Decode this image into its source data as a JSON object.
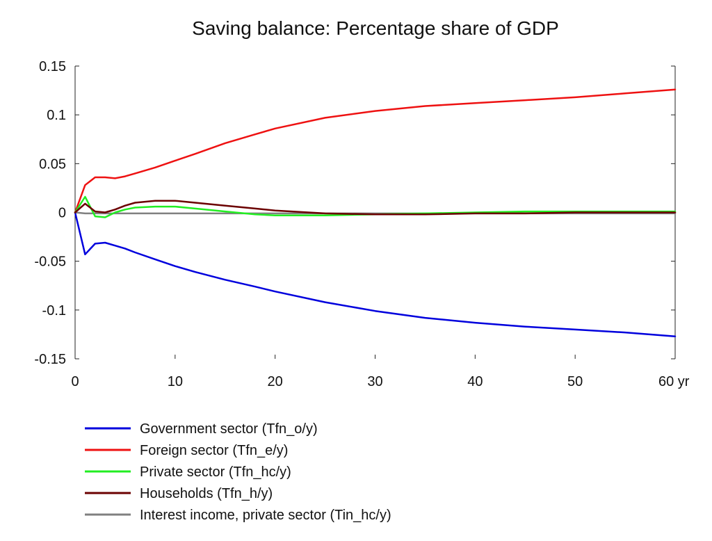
{
  "chart_data": {
    "type": "line",
    "title": "Saving balance: Percentage share of GDP",
    "xlabel": "",
    "ylabel": "",
    "x_unit_suffix": "yr",
    "xlim": [
      0,
      60
    ],
    "ylim": [
      -0.15,
      0.15
    ],
    "x_ticks": [
      0,
      10,
      20,
      30,
      40,
      50,
      60
    ],
    "x_tick_labels": [
      "0",
      "10",
      "20",
      "30",
      "40",
      "50",
      "60 yr"
    ],
    "y_ticks": [
      0.15,
      0.1,
      0.05,
      0,
      -0.05,
      -0.1,
      -0.15
    ],
    "y_tick_labels": [
      "0.15",
      "0.1",
      "0.05",
      "0",
      "-0.05",
      "-0.1",
      "-0.15"
    ],
    "grid": false,
    "legend_position": "bottom-left",
    "series": [
      {
        "name": "Government sector (Tfn_o/y)",
        "color": "#0000dd",
        "x": [
          0,
          1,
          2,
          3,
          4,
          5,
          6,
          8,
          10,
          12,
          15,
          18,
          20,
          25,
          30,
          35,
          40,
          45,
          50,
          55,
          60
        ],
        "y": [
          0,
          -0.043,
          -0.032,
          -0.031,
          -0.034,
          -0.037,
          -0.041,
          -0.048,
          -0.055,
          -0.061,
          -0.069,
          -0.076,
          -0.081,
          -0.092,
          -0.101,
          -0.108,
          -0.113,
          -0.117,
          -0.12,
          -0.123,
          -0.127
        ]
      },
      {
        "name": "Foreign sector (Tfn_e/y)",
        "color": "#ee1111",
        "x": [
          0,
          1,
          2,
          3,
          4,
          5,
          6,
          8,
          10,
          12,
          15,
          18,
          20,
          25,
          30,
          35,
          40,
          45,
          50,
          55,
          60
        ],
        "y": [
          0,
          0.028,
          0.036,
          0.036,
          0.035,
          0.037,
          0.04,
          0.046,
          0.053,
          0.06,
          0.071,
          0.08,
          0.086,
          0.097,
          0.104,
          0.109,
          0.112,
          0.115,
          0.118,
          0.122,
          0.126
        ]
      },
      {
        "name": "Private sector (Tfn_hc/y)",
        "color": "#22ee22",
        "x": [
          0,
          1,
          2,
          3,
          4,
          5,
          6,
          8,
          10,
          12,
          15,
          18,
          20,
          25,
          30,
          35,
          40,
          45,
          50,
          55,
          60
        ],
        "y": [
          0,
          0.016,
          -0.004,
          -0.005,
          0.0,
          0.003,
          0.005,
          0.006,
          0.006,
          0.004,
          0.001,
          -0.002,
          -0.003,
          -0.003,
          -0.002,
          -0.001,
          0.0,
          0.001,
          0.001,
          0.001,
          0.001
        ]
      },
      {
        "name": "Households (Tfn_h/y)",
        "color": "#6b0000",
        "x": [
          0,
          1,
          2,
          3,
          4,
          5,
          6,
          8,
          10,
          12,
          15,
          18,
          20,
          25,
          30,
          35,
          40,
          45,
          50,
          55,
          60
        ],
        "y": [
          0,
          0.009,
          0.001,
          0.0,
          0.003,
          0.007,
          0.01,
          0.012,
          0.012,
          0.01,
          0.007,
          0.004,
          0.002,
          -0.001,
          -0.002,
          -0.002,
          -0.001,
          -0.001,
          0.0,
          0.0,
          0.0
        ]
      },
      {
        "name": "Interest income, private sector (Tin_hc/y)",
        "color": "#808080",
        "x": [
          0,
          1,
          2,
          3,
          5,
          10,
          20,
          30,
          40,
          50,
          60
        ],
        "y": [
          0,
          -0.001,
          -0.001,
          -0.001,
          -0.001,
          -0.001,
          -0.001,
          -0.001,
          -0.001,
          -0.001,
          -0.001
        ]
      }
    ]
  }
}
